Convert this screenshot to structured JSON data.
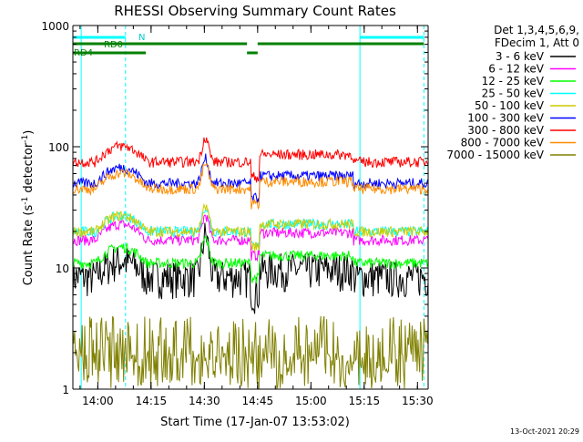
{
  "chart_data": {
    "type": "line",
    "title": "RHESSI Observing Summary Count Rates",
    "xlabel": "Start Time (17-Jan-07 13:53:02)",
    "ylabel_main": "Count Rate (s",
    "ylabel_sup1": "-1",
    "ylabel_mid": " detector",
    "ylabel_sup2": "-1",
    "ylabel_end": ")",
    "yscale": "log",
    "ylim": [
      1,
      1000
    ],
    "xlim_minutes": [
      13.883,
      15.55
    ],
    "x_ticks": [
      {
        "label": "14:00",
        "minutes": 14.0
      },
      {
        "label": "14:15",
        "minutes": 14.25
      },
      {
        "label": "14:30",
        "minutes": 14.5
      },
      {
        "label": "14:45",
        "minutes": 14.75
      },
      {
        "label": "15:00",
        "minutes": 15.0
      },
      {
        "label": "15:15",
        "minutes": 15.25
      },
      {
        "label": "15:30",
        "minutes": 15.5
      }
    ],
    "y_ticks": [
      {
        "label": "1",
        "value": 1
      },
      {
        "label": "10",
        "value": 10
      },
      {
        "label": "100",
        "value": 100
      },
      {
        "label": "1000",
        "value": 1000
      }
    ],
    "legend_header": [
      "Det 1,3,4,5,6,9,",
      "FDecim 1, Att 0"
    ],
    "legend_placement": "right",
    "series": [
      {
        "name": "3 - 6 keV",
        "color": "#000000",
        "base": 8.5
      },
      {
        "name": "6 - 12 keV",
        "color": "#ff00ff",
        "base": 17
      },
      {
        "name": "12 - 25 keV",
        "color": "#00ff00",
        "base": 11
      },
      {
        "name": "25 - 50 keV",
        "color": "#00ffff",
        "base": 20
      },
      {
        "name": "50 - 100 keV",
        "color": "#cccc00",
        "base": 20
      },
      {
        "name": "100 - 300 keV",
        "color": "#0000ff",
        "base": 50
      },
      {
        "name": "300 - 800 keV",
        "color": "#ff0000",
        "base": 75
      },
      {
        "name": "800 - 7000 keV",
        "color": "#ff8c00",
        "base": 45
      },
      {
        "name": "7000 - 15000 keV",
        "color": "#808000",
        "base": 2
      }
    ],
    "flags": [
      {
        "name": "N",
        "color": "#00ffff"
      },
      {
        "name": "RD0",
        "color": "#008000"
      },
      {
        "name": "RD4",
        "color": "#008000"
      }
    ],
    "flag_cyan_label": "N",
    "flag_rd0_label": "RD0",
    "flag_rd4_label": "RD4",
    "timestamp": "13-Oct-2021 20:29",
    "grid": false
  }
}
